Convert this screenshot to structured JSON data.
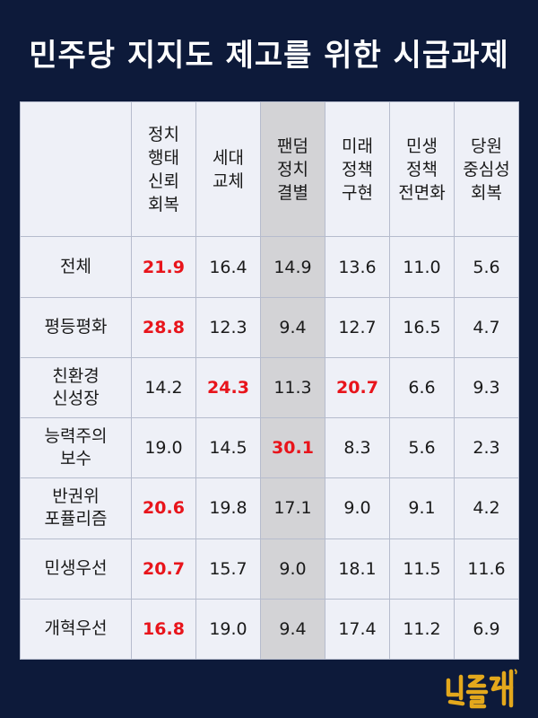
{
  "title": "민주당 지지도 제고를 위한 시급과제",
  "columns": [
    "정치\n행태\n신뢰\n회복",
    "세대\n교체",
    "팬덤\n정치\n결별",
    "미래\n정책\n구현",
    "민생\n정책\n전면화",
    "당원\n중심성\n회복"
  ],
  "rows": [
    {
      "label": "전체",
      "values": [
        "21.9",
        "16.4",
        "14.9",
        "13.6",
        "11.0",
        "5.6"
      ],
      "highlight": [
        0
      ]
    },
    {
      "label": "평등평화",
      "values": [
        "28.8",
        "12.3",
        "9.4",
        "12.7",
        "16.5",
        "4.7"
      ],
      "highlight": [
        0
      ]
    },
    {
      "label": "친환경\n신성장",
      "values": [
        "14.2",
        "24.3",
        "11.3",
        "20.7",
        "6.6",
        "9.3"
      ],
      "highlight": [
        1,
        3
      ]
    },
    {
      "label": "능력주의\n보수",
      "values": [
        "19.0",
        "14.5",
        "30.1",
        "8.3",
        "5.6",
        "2.3"
      ],
      "highlight": [
        2
      ]
    },
    {
      "label": "반권위\n포퓰리즘",
      "values": [
        "20.6",
        "19.8",
        "17.1",
        "9.0",
        "9.1",
        "4.2"
      ],
      "highlight": [
        0
      ]
    },
    {
      "label": "민생우선",
      "values": [
        "20.7",
        "15.7",
        "9.0",
        "18.1",
        "11.5",
        "11.6"
      ],
      "highlight": [
        0
      ]
    },
    {
      "label": "개혁우선",
      "values": [
        "16.8",
        "19.0",
        "9.4",
        "17.4",
        "11.2",
        "6.9"
      ],
      "highlight": [
        0
      ]
    }
  ],
  "shaded_column": 2,
  "colors": {
    "background": "#0d1a3a",
    "table": "#eef0f7",
    "shade": "#d3d3d6",
    "highlight": "#e8141b",
    "logo": "#e3a81c"
  },
  "logo": "민들레",
  "logo_icon": "mindeulle-logo-icon"
}
